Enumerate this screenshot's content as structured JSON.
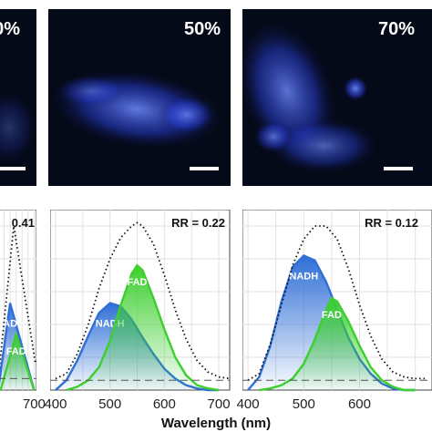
{
  "colors": {
    "nadh": "#2f6fd6",
    "fad": "#3ccf2e",
    "total": "#111111",
    "micrograph_bg": "#050a18",
    "micrograph_signal": "#2a4dff"
  },
  "micrographs": [
    {
      "id": "m0",
      "label": "0%"
    },
    {
      "id": "m1",
      "label": "50%"
    },
    {
      "id": "m2",
      "label": "70%"
    }
  ],
  "chart_data": [
    {
      "type": "area",
      "annotation": "0.41",
      "xlabel": "",
      "xlim": [
        400,
        720
      ],
      "ylim": [
        0,
        1.1
      ],
      "xticks": [
        "700"
      ],
      "grid": true,
      "series": [
        {
          "name": "NADH",
          "x": [
            400,
            500,
            700
          ],
          "y": [
            0,
            0.53,
            0
          ]
        },
        {
          "name": "FAD",
          "x": [
            420,
            550,
            700
          ],
          "y": [
            0,
            0.34,
            0
          ]
        },
        {
          "name": "",
          "style": "dotted",
          "x": [
            400,
            530,
            710
          ],
          "y": [
            0.06,
            1.0,
            0.17
          ]
        },
        {
          "name": "",
          "style": "dashed",
          "x": [
            400,
            720
          ],
          "y": [
            0.07,
            0.07
          ]
        }
      ]
    },
    {
      "type": "area",
      "annotation": "RR = 0.22",
      "xlabel": "",
      "xlim": [
        390,
        720
      ],
      "ylim": [
        0,
        1.1
      ],
      "xticks": [
        "400",
        "500",
        "600",
        "700"
      ],
      "grid": true,
      "series": [
        {
          "name": "NADH",
          "x": [
            400,
            420,
            440,
            460,
            480,
            500,
            520,
            540,
            560,
            580,
            600,
            620,
            640,
            660,
            680,
            700
          ],
          "y": [
            0.0,
            0.06,
            0.18,
            0.33,
            0.47,
            0.53,
            0.51,
            0.43,
            0.32,
            0.22,
            0.13,
            0.07,
            0.03,
            0.01,
            0.0,
            0.0
          ]
        },
        {
          "name": "FAD",
          "x": [
            420,
            440,
            460,
            480,
            500,
            520,
            540,
            550,
            560,
            580,
            600,
            620,
            640,
            660,
            680,
            700
          ],
          "y": [
            0.0,
            0.02,
            0.06,
            0.14,
            0.3,
            0.52,
            0.71,
            0.76,
            0.73,
            0.56,
            0.37,
            0.2,
            0.09,
            0.03,
            0.01,
            0.0
          ]
        },
        {
          "name": "",
          "style": "dotted",
          "x": [
            400,
            420,
            440,
            460,
            480,
            500,
            520,
            540,
            550,
            560,
            580,
            600,
            620,
            640,
            660,
            680,
            700,
            720
          ],
          "y": [
            0.07,
            0.1,
            0.22,
            0.4,
            0.62,
            0.8,
            0.93,
            1.0,
            1.02,
            1.0,
            0.89,
            0.7,
            0.49,
            0.31,
            0.18,
            0.11,
            0.08,
            0.07
          ]
        },
        {
          "name": "",
          "style": "dashed",
          "x": [
            390,
            720
          ],
          "y": [
            0.06,
            0.06
          ]
        }
      ]
    },
    {
      "type": "area",
      "annotation": "RR = 0.12",
      "xlabel": "",
      "xlim": [
        390,
        730
      ],
      "ylim": [
        0,
        1.1
      ],
      "xticks": [
        "400",
        "500",
        "600"
      ],
      "grid": true,
      "series": [
        {
          "name": "NADH",
          "x": [
            400,
            420,
            440,
            460,
            480,
            500,
            520,
            540,
            560,
            580,
            600,
            620,
            640,
            660,
            680,
            700
          ],
          "y": [
            0.0,
            0.08,
            0.27,
            0.54,
            0.75,
            0.82,
            0.79,
            0.66,
            0.49,
            0.32,
            0.19,
            0.1,
            0.04,
            0.01,
            0.0,
            0.0
          ]
        },
        {
          "name": "FAD",
          "x": [
            420,
            440,
            460,
            480,
            500,
            520,
            540,
            550,
            560,
            580,
            600,
            620,
            640,
            660,
            680,
            700
          ],
          "y": [
            0.0,
            0.01,
            0.03,
            0.07,
            0.16,
            0.31,
            0.49,
            0.56,
            0.54,
            0.42,
            0.27,
            0.14,
            0.06,
            0.02,
            0.0,
            0.0
          ]
        },
        {
          "name": "",
          "style": "dotted",
          "x": [
            400,
            420,
            440,
            460,
            480,
            500,
            520,
            540,
            560,
            580,
            600,
            620,
            640,
            660,
            680,
            700,
            720
          ],
          "y": [
            0.06,
            0.1,
            0.28,
            0.52,
            0.76,
            0.92,
            1.0,
            1.0,
            0.92,
            0.74,
            0.52,
            0.33,
            0.19,
            0.11,
            0.08,
            0.07,
            0.07
          ]
        },
        {
          "name": "",
          "style": "dashed",
          "x": [
            390,
            730
          ],
          "y": [
            0.06,
            0.06
          ]
        }
      ]
    }
  ],
  "shared_xlabel": "Wavelength (nm)"
}
